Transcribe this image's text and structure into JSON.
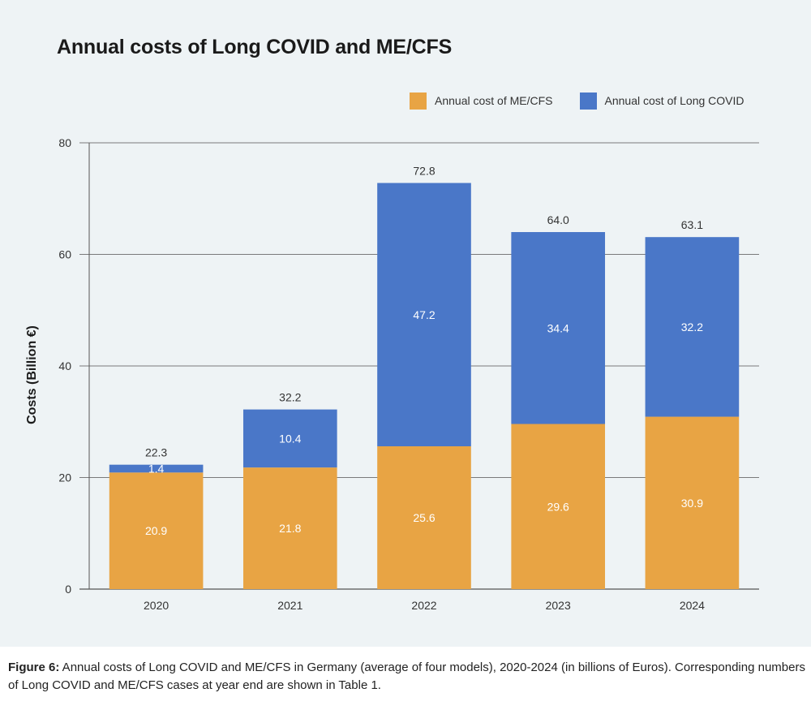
{
  "chart_data": {
    "type": "bar",
    "stacked": true,
    "title": "Annual costs of Long COVID and ME/CFS",
    "xlabel": "",
    "ylabel": "Costs (Billion €)",
    "ylim": [
      0,
      80
    ],
    "yticks": [
      0,
      20,
      40,
      60,
      80
    ],
    "categories": [
      "2020",
      "2021",
      "2022",
      "2023",
      "2024"
    ],
    "series": [
      {
        "name": "Annual cost of ME/CFS",
        "color": "#e8a444",
        "values": [
          20.9,
          21.8,
          25.6,
          29.6,
          30.9
        ],
        "labels": [
          "20.9",
          "21.8",
          "25.6",
          "29.6",
          "30.9"
        ]
      },
      {
        "name": "Annual cost of Long COVID",
        "color": "#4a77c8",
        "values": [
          1.4,
          10.4,
          47.2,
          34.4,
          32.2
        ],
        "labels": [
          "1.4",
          "10.4",
          "47.2",
          "34.4",
          "32.2"
        ]
      }
    ],
    "totals": [
      22.3,
      32.2,
      72.8,
      64.0,
      63.1
    ],
    "total_labels": [
      "22.3",
      "32.2",
      "72.8",
      "64.0",
      "63.1"
    ],
    "legend_position": "top-right",
    "grid": true
  },
  "caption": {
    "prefix": "Figure 6:",
    "text": " Annual costs of Long COVID and ME/CFS in Germany (average of four models), 2020-2024 (in billions of Euros). Corresponding numbers of Long COVID and ME/CFS cases at year end are shown in Table 1."
  }
}
